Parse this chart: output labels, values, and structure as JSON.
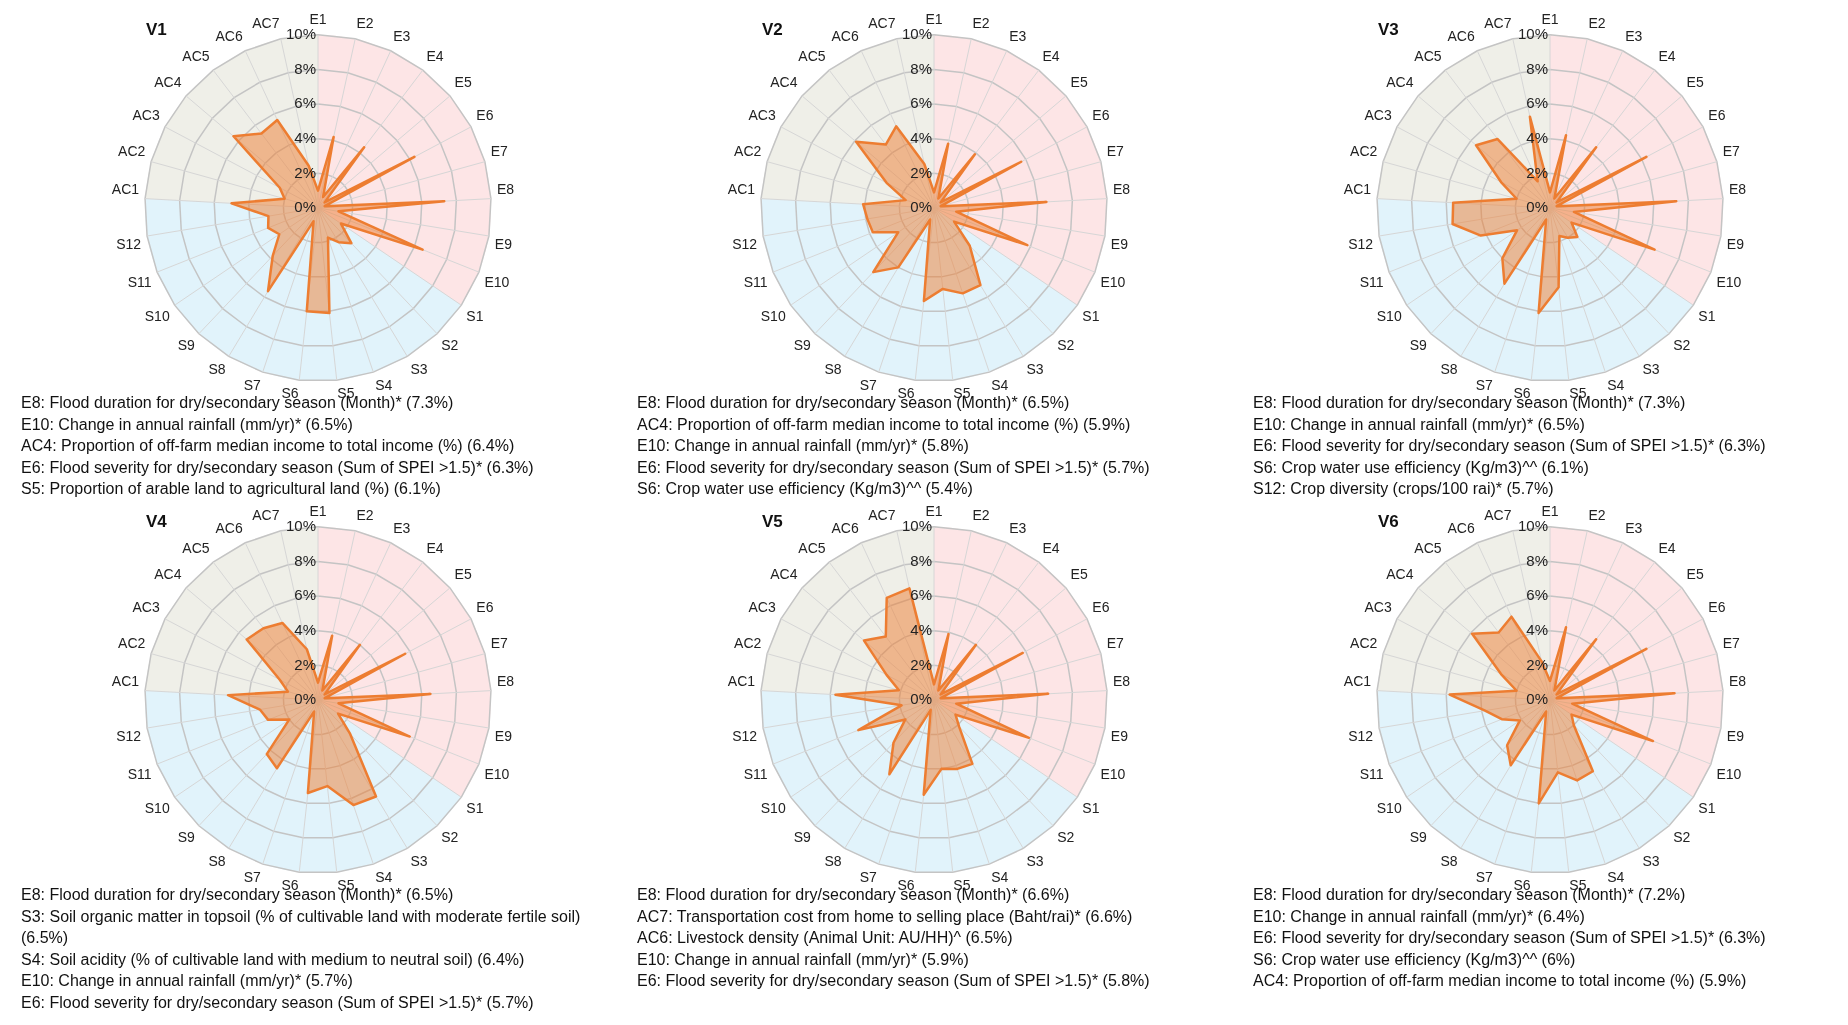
{
  "chart_data": [
    {
      "type": "radar",
      "title": "V1",
      "categories": [
        "E1",
        "E2",
        "E3",
        "E4",
        "E5",
        "E6",
        "E7",
        "E8",
        "E9",
        "E10",
        "S1",
        "S2",
        "S3",
        "S4",
        "S5",
        "S6",
        "S7",
        "S8",
        "S9",
        "S10",
        "S11",
        "S12",
        "AC1",
        "AC2",
        "AC3",
        "AC4",
        "AC5",
        "AC6",
        "AC7"
      ],
      "series": [
        {
          "color": "#ed7d31",
          "values": [
            1.0,
            4.2,
            0.7,
            4.4,
            0.5,
            6.3,
            0.4,
            7.3,
            1.2,
            6.5,
            1.6,
            2.8,
            2.3,
            1.8,
            6.1,
            6.0,
            0.8,
            5.6,
            3.8,
            2.7,
            3.1,
            2.9,
            5.0,
            2.0,
            2.5,
            6.4,
            5.4,
            5.6,
            2.5
          ]
        }
      ],
      "ylim": [
        0,
        10
      ],
      "yticks": [
        {
          "value": 0,
          "label": "0%"
        },
        {
          "value": 2,
          "label": "2%"
        },
        {
          "value": 4,
          "label": "4%"
        },
        {
          "value": 6,
          "label": "6%"
        },
        {
          "value": 8,
          "label": "8%"
        },
        {
          "value": 10,
          "label": "10%"
        }
      ],
      "grid": true,
      "marker": "none",
      "annotations": [
        "E8: Flood duration for dry/secondary season (Month)* (7.3%)",
        "E10: Change in annual rainfall (mm/yr)* (6.5%)",
        "AC4: Proportion of off-farm median income to total income (%) (6.4%)",
        "E6: Flood severity for dry/secondary season (Sum of SPEI >1.5)* (6.3%)",
        "S5: Proportion of arable land to agricultural land (%) (6.1%)"
      ]
    },
    {
      "type": "radar",
      "title": "V2",
      "categories": [
        "E1",
        "E2",
        "E3",
        "E4",
        "E5",
        "E6",
        "E7",
        "E8",
        "E9",
        "E10",
        "S1",
        "S2",
        "S3",
        "S4",
        "S5",
        "S6",
        "S7",
        "S8",
        "S9",
        "S10",
        "S11",
        "S12",
        "AC1",
        "AC2",
        "AC3",
        "AC4",
        "AC5",
        "AC6",
        "AC7"
      ],
      "series": [
        {
          "color": "#ed7d31",
          "values": [
            0.9,
            3.8,
            0.6,
            3.9,
            0.5,
            5.7,
            0.4,
            6.5,
            1.3,
            5.8,
            1.4,
            3.0,
            5.2,
            5.2,
            4.7,
            5.4,
            0.7,
            4.0,
            5.1,
            2.5,
            3.8,
            3.9,
            4.1,
            1.7,
            3.1,
            5.9,
            4.6,
            5.2,
            2.6
          ]
        }
      ],
      "ylim": [
        0,
        10
      ],
      "yticks": [
        {
          "value": 0,
          "label": "0%"
        },
        {
          "value": 2,
          "label": "2%"
        },
        {
          "value": 4,
          "label": "4%"
        },
        {
          "value": 6,
          "label": "6%"
        },
        {
          "value": 8,
          "label": "8%"
        },
        {
          "value": 10,
          "label": "10%"
        }
      ],
      "grid": true,
      "marker": "none",
      "annotations": [
        "E8: Flood duration for dry/secondary season (Month)* (6.5%)",
        "AC4: Proportion of off-farm median income to total income (%) (5.9%)",
        "E10: Change in annual rainfall (mm/yr)* (5.8%)",
        "E6: Flood severity for dry/secondary season (Sum of SPEI >1.5)* (5.7%)",
        "S6: Crop water use efficiency (Kg/m3)^^ (5.4%)"
      ]
    },
    {
      "type": "radar",
      "title": "V3",
      "categories": [
        "E1",
        "E2",
        "E3",
        "E4",
        "E5",
        "E6",
        "E7",
        "E8",
        "E9",
        "E10",
        "S1",
        "S2",
        "S3",
        "S4",
        "S5",
        "S6",
        "S7",
        "S8",
        "S9",
        "S10",
        "S11",
        "S12",
        "AC1",
        "AC2",
        "AC3",
        "AC4",
        "AC5",
        "AC6",
        "AC7"
      ],
      "series": [
        {
          "color": "#ed7d31",
          "values": [
            0.9,
            4.3,
            0.6,
            4.4,
            0.5,
            6.3,
            0.4,
            7.3,
            1.4,
            6.5,
            1.5,
            2.3,
            2.0,
            1.7,
            4.6,
            6.1,
            0.7,
            5.1,
            4.0,
            2.3,
            4.3,
            5.7,
            5.6,
            2.0,
            3.2,
            5.6,
            5.0,
            1.7,
            5.4
          ]
        }
      ],
      "ylim": [
        0,
        10
      ],
      "yticks": [
        {
          "value": 0,
          "label": "0%"
        },
        {
          "value": 2,
          "label": "2%"
        },
        {
          "value": 4,
          "label": "4%"
        },
        {
          "value": 6,
          "label": "6%"
        },
        {
          "value": 8,
          "label": "8%"
        },
        {
          "value": 10,
          "label": "10%"
        }
      ],
      "grid": true,
      "marker": "none",
      "annotations": [
        "E8: Flood duration for dry/secondary season (Month)* (7.3%)",
        "E10: Change in annual rainfall (mm/yr)* (6.5%)",
        "E6: Flood severity for dry/secondary season (Sum of SPEI >1.5)* (6.3%)",
        "S6: Crop water use efficiency (Kg/m3)^^ (6.1%)",
        "S12: Crop diversity (crops/100 rai)* (5.7%)"
      ]
    },
    {
      "type": "radar",
      "title": "V4",
      "categories": [
        "E1",
        "E2",
        "E3",
        "E4",
        "E5",
        "E6",
        "E7",
        "E8",
        "E9",
        "E10",
        "S1",
        "S2",
        "S3",
        "S4",
        "S5",
        "S6",
        "S7",
        "S8",
        "S9",
        "S10",
        "S11",
        "S12",
        "AC1",
        "AC2",
        "AC3",
        "AC4",
        "AC5",
        "AC6",
        "AC7"
      ],
      "series": [
        {
          "color": "#ed7d31",
          "values": [
            1.0,
            3.8,
            0.6,
            4.0,
            0.5,
            5.7,
            0.4,
            6.5,
            1.2,
            5.7,
            1.4,
            2.7,
            6.5,
            6.4,
            5.0,
            5.4,
            0.7,
            4.6,
            4.3,
            2.0,
            3.1,
            3.4,
            5.2,
            1.8,
            2.5,
            5.4,
            5.2,
            4.9,
            3.0
          ]
        }
      ],
      "ylim": [
        0,
        10
      ],
      "yticks": [
        {
          "value": 0,
          "label": "0%"
        },
        {
          "value": 2,
          "label": "2%"
        },
        {
          "value": 4,
          "label": "4%"
        },
        {
          "value": 6,
          "label": "6%"
        },
        {
          "value": 8,
          "label": "8%"
        },
        {
          "value": 10,
          "label": "10%"
        }
      ],
      "grid": true,
      "marker": "none",
      "annotations": [
        "E8: Flood duration for dry/secondary season (Month)* (6.5%)",
        "S3: Soil organic matter in topsoil (% of cultivable land with moderate fertile soil) (6.5%)",
        "S4: Soil acidity (% of cultivable land with medium to neutral soil) (6.4%)",
        "E10: Change in annual rainfall (mm/yr)* (5.7%)",
        "E6: Flood severity for dry/secondary season (Sum of SPEI >1.5)* (5.7%)"
      ]
    },
    {
      "type": "radar",
      "title": "V5",
      "categories": [
        "E1",
        "E2",
        "E3",
        "E4",
        "E5",
        "E6",
        "E7",
        "E8",
        "E9",
        "E10",
        "S1",
        "S2",
        "S3",
        "S4",
        "S5",
        "S6",
        "S7",
        "S8",
        "S9",
        "S10",
        "S11",
        "S12",
        "AC1",
        "AC2",
        "AC3",
        "AC4",
        "AC5",
        "AC6",
        "AC7"
      ],
      "series": [
        {
          "color": "#ed7d31",
          "values": [
            0.9,
            3.9,
            0.6,
            4.0,
            0.5,
            5.8,
            0.4,
            6.6,
            1.3,
            5.9,
            1.5,
            2.1,
            4.3,
            4.2,
            4.0,
            5.5,
            0.6,
            5.0,
            3.4,
            2.0,
            4.7,
            1.9,
            5.7,
            2.1,
            3.1,
            5.3,
            4.6,
            6.5,
            6.6
          ]
        }
      ],
      "ylim": [
        0,
        10
      ],
      "yticks": [
        {
          "value": 0,
          "label": "0%"
        },
        {
          "value": 2,
          "label": "2%"
        },
        {
          "value": 4,
          "label": "4%"
        },
        {
          "value": 6,
          "label": "6%"
        },
        {
          "value": 8,
          "label": "8%"
        },
        {
          "value": 10,
          "label": "10%"
        }
      ],
      "grid": true,
      "marker": "none",
      "annotations": [
        "E8: Flood duration for dry/secondary season (Month)* (6.6%)",
        "AC7: Transportation cost from home to selling place (Baht/rai)* (6.6%)",
        "AC6: Livestock density (Animal Unit: AU/HH)^ (6.5%)",
        "E10: Change in annual rainfall (mm/yr)* (5.9%)",
        "E6: Flood severity for dry/secondary season (Sum of SPEI >1.5)* (5.8%)"
      ]
    },
    {
      "type": "radar",
      "title": "V6",
      "categories": [
        "E1",
        "E2",
        "E3",
        "E4",
        "E5",
        "E6",
        "E7",
        "E8",
        "E9",
        "E10",
        "S1",
        "S2",
        "S3",
        "S4",
        "S5",
        "S6",
        "S7",
        "S8",
        "S9",
        "S10",
        "S11",
        "S12",
        "AC1",
        "AC2",
        "AC3",
        "AC4",
        "AC5",
        "AC6",
        "AC7"
      ],
      "series": [
        {
          "color": "#ed7d31",
          "values": [
            1.1,
            4.3,
            0.6,
            4.4,
            0.5,
            6.3,
            0.4,
            7.2,
            1.3,
            6.4,
            1.5,
            2.0,
            4.8,
            4.9,
            4.2,
            6.0,
            0.7,
            4.4,
            3.6,
            2.1,
            3.0,
            3.8,
            5.8,
            2.0,
            3.2,
            5.9,
            4.9,
            5.3,
            2.3
          ]
        }
      ],
      "ylim": [
        0,
        10
      ],
      "yticks": [
        {
          "value": 0,
          "label": "0%"
        },
        {
          "value": 2,
          "label": "2%"
        },
        {
          "value": 4,
          "label": "4%"
        },
        {
          "value": 6,
          "label": "6%"
        },
        {
          "value": 8,
          "label": "8%"
        },
        {
          "value": 10,
          "label": "10%"
        }
      ],
      "grid": true,
      "marker": "none",
      "annotations": [
        "E8: Flood duration for dry/secondary season (Month)* (7.2%)",
        "E10: Change in annual rainfall (mm/yr)* (6.4%)",
        "E6: Flood severity for dry/secondary season (Sum of SPEI >1.5)* (6.3%)",
        "S6: Crop water use efficiency (Kg/m3)^^ (6%)",
        "AC4: Proportion of off-farm median income to total income (%) (5.9%)"
      ]
    }
  ]
}
